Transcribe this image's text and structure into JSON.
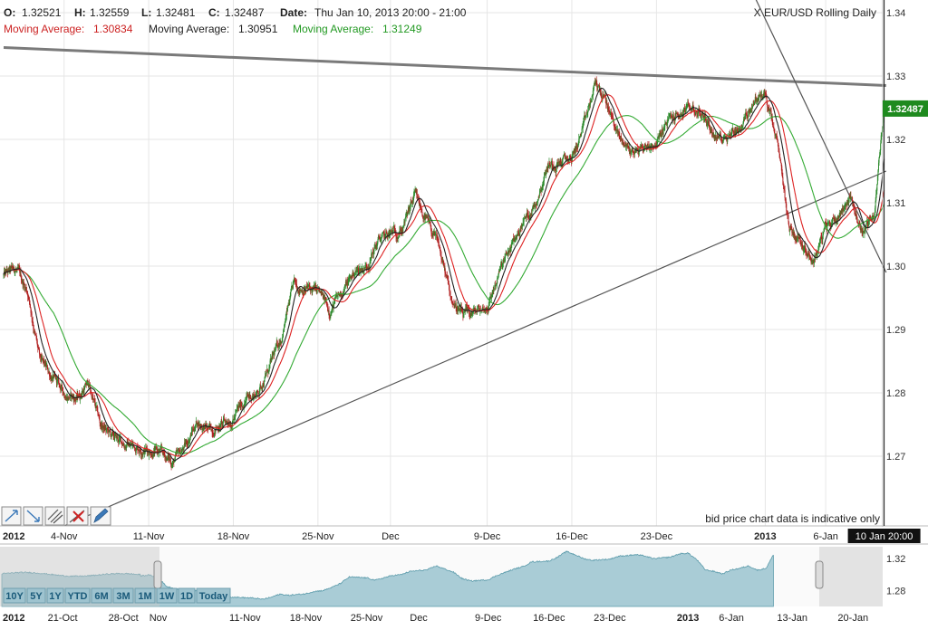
{
  "header": {
    "open_label": "O:",
    "open": "1.32521",
    "high_label": "H:",
    "high": "1.32559",
    "low_label": "L:",
    "low": "1.32481",
    "close_label": "C:",
    "close": "1.32487",
    "date_label": "Date:",
    "date": "Thu Jan 10, 2013 20:00 - 21:00",
    "instrument": "X EUR/USD Rolling Daily"
  },
  "moving_averages": [
    {
      "label": "Moving Average:",
      "value": "1.30834",
      "color": "#cc2222"
    },
    {
      "label": "Moving Average:",
      "value": "1.30951",
      "color": "#222222"
    },
    {
      "label": "Moving Average:",
      "value": "1.31249",
      "color": "#229922"
    }
  ],
  "colors": {
    "up": "#2e8b2e",
    "down": "#b22222",
    "ma_red": "#dd2222",
    "ma_black": "#222222",
    "ma_green": "#33aa33",
    "trendline": "#555555",
    "price_marker": "#1e8a1e",
    "navigator_fill": "#a9ccd6",
    "navigator_line": "#5a9aaa"
  },
  "current_price": "1.32487",
  "crosshair_label": "10 Jan 20:00",
  "disclaimer": "bid price chart data is indicative only",
  "drawing_tools": [
    "trend-up-icon",
    "trend-down-icon",
    "parallel-lines-icon",
    "delete-icon",
    "pen-icon"
  ],
  "range_buttons": [
    "10Y",
    "5Y",
    "1Y",
    "YTD",
    "6M",
    "3M",
    "1M",
    "1W",
    "1D",
    "Today"
  ],
  "navigator": {
    "ticks": [
      "1.32",
      "1.28"
    ],
    "year_label": "2012",
    "x_labels": [
      "21-Oct",
      "28-Oct",
      "Nov",
      "11-Nov",
      "18-Nov",
      "25-Nov",
      "Dec",
      "9-Dec",
      "16-Dec",
      "23-Dec",
      "2013",
      "6-Jan",
      "13-Jan",
      "20-Jan"
    ]
  },
  "chart_data": {
    "type": "candlestick",
    "title": "X EUR/USD Rolling Daily",
    "year_label": "2012",
    "x_tick_labels": [
      "4-Nov",
      "11-Nov",
      "18-Nov",
      "25-Nov",
      "Dec",
      "9-Dec",
      "16-Dec",
      "23-Dec",
      "2013",
      "6-Jan"
    ],
    "y_ticks": [
      1.34,
      1.33,
      1.32,
      1.31,
      1.3,
      1.29,
      1.28,
      1.27
    ],
    "ylim": [
      1.259,
      1.342
    ],
    "interval": "hourly",
    "grid": true,
    "series_price_waypoints": [
      [
        "2012-10-30",
        1.2985
      ],
      [
        "2012-10-31",
        1.2995
      ],
      [
        "2012-11-01",
        1.296
      ],
      [
        "2012-11-02",
        1.285
      ],
      [
        "2012-11-04",
        1.28
      ],
      [
        "2012-11-05",
        1.279
      ],
      [
        "2012-11-06",
        1.2815
      ],
      [
        "2012-11-07",
        1.275
      ],
      [
        "2012-11-08",
        1.273
      ],
      [
        "2012-11-09",
        1.272
      ],
      [
        "2012-11-11",
        1.271
      ],
      [
        "2012-11-12",
        1.2705
      ],
      [
        "2012-11-13",
        1.269
      ],
      [
        "2012-11-14",
        1.2715
      ],
      [
        "2012-11-15",
        1.2755
      ],
      [
        "2012-11-16",
        1.274
      ],
      [
        "2012-11-18",
        1.276
      ],
      [
        "2012-11-19",
        1.279
      ],
      [
        "2012-11-20",
        1.28
      ],
      [
        "2012-11-21",
        1.284
      ],
      [
        "2012-11-22",
        1.289
      ],
      [
        "2012-11-23",
        1.297
      ],
      [
        "2012-11-25",
        1.296
      ],
      [
        "2012-11-26",
        1.293
      ],
      [
        "2012-11-27",
        1.296
      ],
      [
        "2012-11-28",
        1.299
      ],
      [
        "2012-11-29",
        1.3
      ],
      [
        "2012-11-30",
        1.304
      ],
      [
        "2012-12-02",
        1.306
      ],
      [
        "2012-12-03",
        1.311
      ],
      [
        "2012-12-04",
        1.307
      ],
      [
        "2012-12-05",
        1.303
      ],
      [
        "2012-12-06",
        1.295
      ],
      [
        "2012-12-07",
        1.292
      ],
      [
        "2012-12-09",
        1.2935
      ],
      [
        "2012-12-10",
        1.299
      ],
      [
        "2012-12-11",
        1.303
      ],
      [
        "2012-12-12",
        1.307
      ],
      [
        "2012-12-13",
        1.31
      ],
      [
        "2012-12-14",
        1.316
      ],
      [
        "2012-12-16",
        1.317
      ],
      [
        "2012-12-17",
        1.322
      ],
      [
        "2012-12-18",
        1.329
      ],
      [
        "2012-12-19",
        1.325
      ],
      [
        "2012-12-20",
        1.32
      ],
      [
        "2012-12-21",
        1.318
      ],
      [
        "2012-12-23",
        1.3195
      ],
      [
        "2012-12-24",
        1.323
      ],
      [
        "2012-12-26",
        1.325
      ],
      [
        "2012-12-27",
        1.3235
      ],
      [
        "2012-12-28",
        1.32
      ],
      [
        "2012-12-30",
        1.322
      ],
      [
        "2012-12-31",
        1.326
      ],
      [
        "2013-01-01",
        1.327
      ],
      [
        "2013-01-02",
        1.319
      ],
      [
        "2013-01-03",
        1.306
      ],
      [
        "2013-01-04",
        1.304
      ],
      [
        "2013-01-05",
        1.301
      ],
      [
        "2013-01-06",
        1.306
      ],
      [
        "2013-01-07",
        1.308
      ],
      [
        "2013-01-08",
        1.311
      ],
      [
        "2013-01-09",
        1.3055
      ],
      [
        "2013-01-10",
        1.308
      ],
      [
        "2013-01-10 20:00",
        1.3249
      ]
    ],
    "series": [
      {
        "name": "Moving Average",
        "value": 1.30834,
        "color": "#cc2222"
      },
      {
        "name": "Moving Average",
        "value": 1.30951,
        "color": "#222222"
      },
      {
        "name": "Moving Average",
        "value": 1.31249,
        "color": "#229922"
      }
    ],
    "trendlines": [
      {
        "from": [
          "2012-10-30",
          1.3345
        ],
        "to": [
          "2013-01-11",
          1.3285
        ]
      },
      {
        "from": [
          "2012-11-04",
          1.259
        ],
        "to": [
          "2013-01-11",
          1.315
        ]
      },
      {
        "from": [
          "2012-12-31",
          1.343
        ],
        "to": [
          "2013-01-11",
          1.299
        ]
      }
    ]
  }
}
